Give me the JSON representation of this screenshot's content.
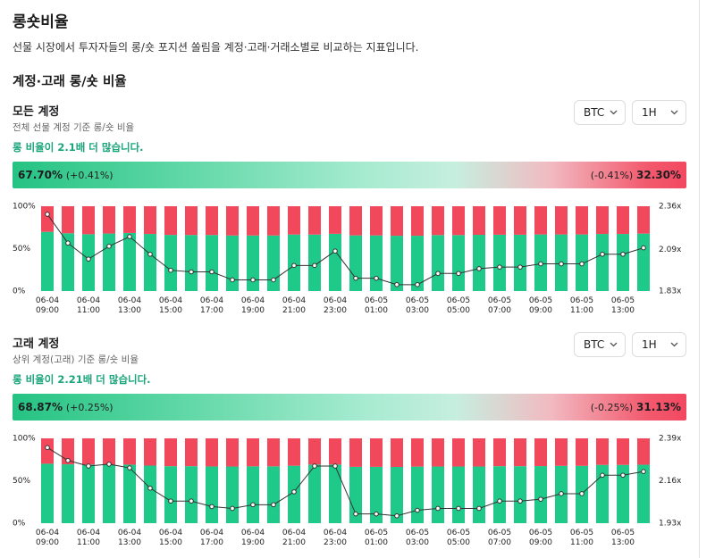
{
  "header": {
    "title": "롱숏비율",
    "description": "선물 시장에서 투자자들의 롱/숏 포지션 쏠림을 계정·고래·거래소별로 비교하는 지표입니다.",
    "section": "계정·고래 롱/숏 비율"
  },
  "panels": [
    {
      "title": "모든 계정",
      "subtitle": "전체 선물 계정 기준 롱/숏 비율",
      "selects": [
        "BTC",
        "1H"
      ],
      "summary": "롱 비율이 2.1배 더 많습니다.",
      "long_pct": "67.70%",
      "long_change": "(+0.41%)",
      "short_change": "(-0.41%)",
      "short_pct": "32.30%"
    },
    {
      "title": "고래 계정",
      "subtitle": "상위 계정(고래) 기준 롱/숏 비율",
      "selects": [
        "BTC",
        "1H"
      ],
      "summary": "롱 비율이 2.21배 더 많습니다.",
      "long_pct": "68.87%",
      "long_change": "(+0.25%)",
      "short_change": "(-0.25%)",
      "short_pct": "31.13%"
    }
  ],
  "chart_data": [
    {
      "type": "bar",
      "stacked": true,
      "categories": [
        "06-04\n09:00",
        null,
        "06-04\n11:00",
        null,
        "06-04\n13:00",
        null,
        "06-04\n15:00",
        null,
        "06-04\n17:00",
        null,
        "06-04\n19:00",
        null,
        "06-04\n21:00",
        null,
        "06-04\n23:00",
        null,
        "06-05\n01:00",
        null,
        "06-05\n03:00",
        null,
        "06-05\n05:00",
        null,
        "06-05\n07:00",
        null,
        "06-05\n09:00",
        null,
        "06-05\n11:00",
        null,
        "06-05\n13:00",
        null
      ],
      "series": [
        {
          "color": "#1fc98a",
          "values": [
            69.8,
            68.1,
            67.0,
            67.8,
            68.5,
            67.3,
            66.2,
            66.1,
            66.1,
            65.5,
            65.5,
            65.5,
            66.6,
            66.6,
            67.5,
            65.6,
            65.6,
            65.2,
            65.2,
            66.0,
            66.0,
            66.3,
            66.4,
            66.4,
            66.7,
            66.7,
            66.7,
            67.3,
            67.3,
            67.7
          ]
        },
        {
          "color": "#f2485c",
          "values": [
            30.2,
            31.9,
            33.0,
            32.2,
            31.5,
            32.7,
            33.8,
            33.9,
            33.9,
            34.5,
            34.5,
            34.5,
            33.4,
            33.4,
            32.5,
            34.4,
            34.4,
            34.8,
            34.8,
            34.0,
            34.0,
            33.7,
            33.6,
            33.6,
            33.3,
            33.3,
            33.3,
            32.7,
            32.7,
            32.3
          ]
        },
        {
          "type": "line",
          "axis": "y2",
          "color": "#333333",
          "values": [
            2.31,
            2.13,
            2.03,
            2.11,
            2.17,
            2.06,
            1.96,
            1.95,
            1.95,
            1.9,
            1.9,
            1.9,
            1.99,
            1.99,
            2.08,
            1.91,
            1.91,
            1.87,
            1.87,
            1.94,
            1.94,
            1.97,
            1.98,
            1.98,
            2.0,
            2.0,
            2.0,
            2.06,
            2.06,
            2.1
          ]
        }
      ],
      "ylim": [
        0,
        100
      ],
      "yticks": [
        {
          "value": 0,
          "label": "0%"
        },
        {
          "value": 50,
          "label": "50%"
        },
        {
          "value": 100,
          "label": "100%"
        }
      ],
      "y2lim": [
        1.83,
        2.36
      ],
      "y2ticks": [
        {
          "value": 1.83,
          "label": "1.83x"
        },
        {
          "value": 2.09,
          "label": "2.09x"
        },
        {
          "value": 2.36,
          "label": "2.36x"
        }
      ]
    },
    {
      "type": "bar",
      "stacked": true,
      "categories": [
        "06-04\n09:00",
        null,
        "06-04\n11:00",
        null,
        "06-04\n13:00",
        null,
        "06-04\n15:00",
        null,
        "06-04\n17:00",
        null,
        "06-04\n19:00",
        null,
        "06-04\n21:00",
        null,
        "06-04\n23:00",
        null,
        "06-05\n01:00",
        null,
        "06-05\n03:00",
        null,
        "06-05\n05:00",
        null,
        "06-05\n07:00",
        null,
        "06-05\n09:00",
        null,
        "06-05\n11:00",
        null,
        "06-05\n13:00",
        null
      ],
      "series": [
        {
          "color": "#1fc98a",
          "values": [
            70.1,
            69.4,
            69.1,
            69.2,
            69.0,
            67.9,
            67.2,
            67.2,
            66.9,
            66.8,
            67.0,
            67.0,
            67.7,
            69.1,
            69.1,
            66.4,
            66.4,
            66.3,
            66.7,
            66.8,
            66.8,
            66.8,
            67.2,
            67.2,
            67.3,
            67.6,
            67.6,
            68.7,
            68.7,
            68.9
          ]
        },
        {
          "color": "#f2485c",
          "values": [
            29.9,
            30.6,
            30.9,
            30.8,
            31.0,
            32.1,
            32.8,
            32.8,
            33.1,
            33.2,
            33.0,
            33.0,
            32.3,
            30.9,
            30.9,
            33.6,
            33.6,
            33.7,
            33.3,
            33.2,
            33.2,
            33.2,
            32.8,
            32.8,
            32.7,
            32.4,
            32.4,
            31.3,
            31.3,
            31.1
          ]
        },
        {
          "type": "line",
          "axis": "y2",
          "color": "#333333",
          "values": [
            2.34,
            2.27,
            2.24,
            2.25,
            2.23,
            2.12,
            2.05,
            2.05,
            2.02,
            2.01,
            2.03,
            2.03,
            2.1,
            2.24,
            2.24,
            1.98,
            1.98,
            1.97,
            2.0,
            2.01,
            2.01,
            2.01,
            2.05,
            2.05,
            2.06,
            2.09,
            2.09,
            2.19,
            2.19,
            2.21
          ]
        }
      ],
      "ylim": [
        0,
        100
      ],
      "yticks": [
        {
          "value": 0,
          "label": "0%"
        },
        {
          "value": 50,
          "label": "50%"
        },
        {
          "value": 100,
          "label": "100%"
        }
      ],
      "y2lim": [
        1.93,
        2.39
      ],
      "y2ticks": [
        {
          "value": 1.93,
          "label": "1.93x"
        },
        {
          "value": 2.16,
          "label": "2.16x"
        },
        {
          "value": 2.39,
          "label": "2.39x"
        }
      ]
    }
  ]
}
